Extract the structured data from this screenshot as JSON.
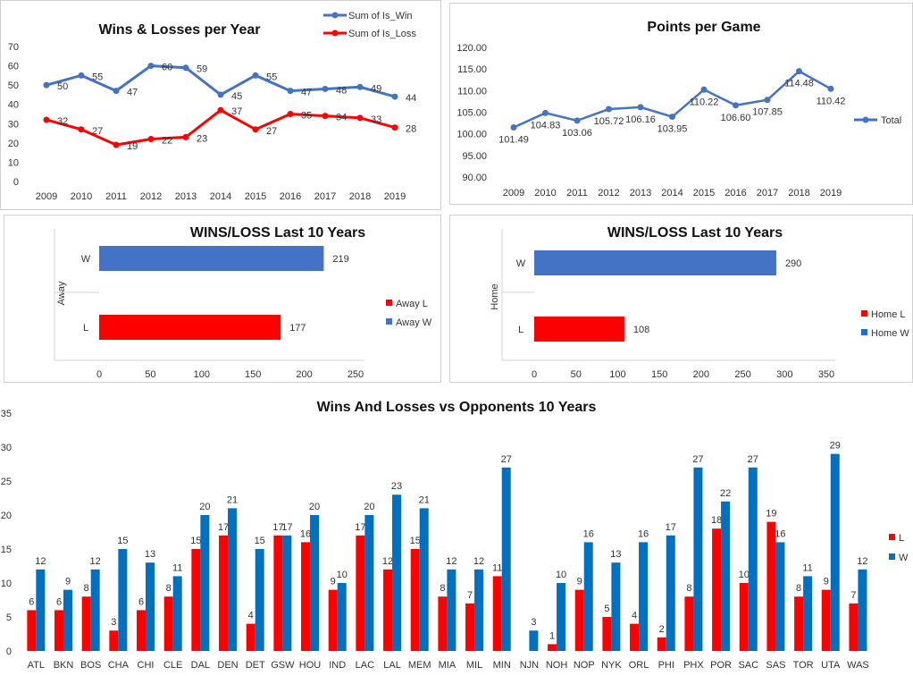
{
  "chart_data": [
    {
      "id": "winloss_year",
      "type": "line",
      "title": "Wins & Losses  per Year",
      "categories": [
        "2009",
        "2010",
        "2011",
        "2012",
        "2013",
        "2014",
        "2015",
        "2016",
        "2017",
        "2018",
        "2019"
      ],
      "series": [
        {
          "name": "Sum of Is_Win",
          "color": "#4472c4",
          "values": [
            50,
            55,
            47,
            60,
            59,
            45,
            55,
            47,
            48,
            49,
            44
          ]
        },
        {
          "name": "Sum of Is_Loss",
          "color": "#ff0000",
          "values": [
            32,
            27,
            19,
            22,
            23,
            37,
            27,
            35,
            34,
            33,
            28
          ]
        }
      ],
      "ylim": [
        0,
        70
      ],
      "yticks": [
        0,
        10,
        20,
        30,
        40,
        50,
        60,
        70
      ],
      "ytick_labels": [
        "0",
        "10",
        "20",
        "30",
        "40",
        "50",
        "60",
        "70"
      ],
      "legend": "top-right",
      "grid": false
    },
    {
      "id": "points_game",
      "type": "line",
      "title": "Points per Game",
      "categories": [
        "2009",
        "2010",
        "2011",
        "2012",
        "2013",
        "2014",
        "2015",
        "2016",
        "2017",
        "2018",
        "2019"
      ],
      "series": [
        {
          "name": "Total",
          "color": "#4472c4",
          "values": [
            101.49,
            104.83,
            103.06,
            105.72,
            106.16,
            103.95,
            110.22,
            106.6,
            107.85,
            114.48,
            110.42
          ],
          "labels": [
            "101.49",
            "104.83",
            "103.06",
            "105.72",
            "106.16",
            "103.95",
            "110.22",
            "106.60",
            "107.85",
            "114.48",
            "110.42"
          ]
        }
      ],
      "ylim": [
        90,
        120
      ],
      "yticks": [
        90,
        95,
        100,
        105,
        110,
        115,
        120
      ],
      "ytick_labels": [
        "90.00",
        "95.00",
        "100.00",
        "105.00",
        "110.00",
        "115.00",
        "120.00"
      ],
      "legend": "right",
      "grid": false
    },
    {
      "id": "away",
      "type": "bar",
      "orientation": "horizontal",
      "title": "WINS/LOSS  Last 10 Years",
      "ylabel": "Away",
      "categories": [
        "W",
        "L"
      ],
      "values": [
        219,
        177
      ],
      "colors": [
        "#4472c4",
        "#ff0000"
      ],
      "legend_entries": [
        {
          "name": "Away L",
          "color": "#ff0000"
        },
        {
          "name": "Away W",
          "color": "#4472c4"
        }
      ],
      "xlim": [
        0,
        250
      ],
      "xticks": [
        0,
        50,
        100,
        150,
        200,
        250
      ],
      "xtick_labels": [
        "0",
        "50",
        "100",
        "150",
        "200",
        "250"
      ]
    },
    {
      "id": "home",
      "type": "bar",
      "orientation": "horizontal",
      "title": "WINS/LOSS Last 10 Years",
      "ylabel": "Home",
      "categories": [
        "W",
        "L"
      ],
      "values": [
        290,
        108
      ],
      "colors": [
        "#4472c4",
        "#ff0000"
      ],
      "legend_entries": [
        {
          "name": "Home L",
          "color": "#ff0000"
        },
        {
          "name": "Home W",
          "color": "#1f6fc5"
        }
      ],
      "xlim": [
        0,
        350
      ],
      "xticks": [
        0,
        50,
        100,
        150,
        200,
        250,
        300,
        350
      ],
      "xtick_labels": [
        "0",
        "50",
        "100",
        "150",
        "200",
        "250",
        "300",
        "350"
      ]
    },
    {
      "id": "opponents",
      "type": "bar",
      "title": "Wins And Losses vs Opponents 10 Years",
      "categories": [
        "ATL",
        "BKN",
        "BOS",
        "CHA",
        "CHI",
        "CLE",
        "DAL",
        "DEN",
        "DET",
        "GSW",
        "HOU",
        "IND",
        "LAC",
        "LAL",
        "MEM",
        "MIA",
        "MIL",
        "MIN",
        "NJN",
        "NOH",
        "NOP",
        "NYK",
        "ORL",
        "PHI",
        "PHX",
        "POR",
        "SAC",
        "SAS",
        "TOR",
        "UTA",
        "WAS"
      ],
      "series": [
        {
          "name": "L",
          "color": "#ff0000",
          "values": [
            6,
            6,
            8,
            3,
            6,
            8,
            15,
            17,
            4,
            17,
            16,
            9,
            17,
            12,
            15,
            8,
            7,
            11,
            null,
            1,
            9,
            5,
            4,
            2,
            8,
            18,
            10,
            19,
            8,
            9,
            7
          ]
        },
        {
          "name": "W",
          "color": "#0070c0",
          "values": [
            12,
            9,
            12,
            15,
            13,
            11,
            20,
            21,
            15,
            17,
            20,
            10,
            20,
            23,
            21,
            12,
            12,
            27,
            3,
            10,
            16,
            13,
            16,
            17,
            27,
            22,
            27,
            16,
            11,
            29,
            12
          ]
        }
      ],
      "ylim": [
        0,
        35
      ],
      "yticks": [
        0,
        5,
        10,
        15,
        20,
        25,
        30,
        35
      ],
      "ytick_labels": [
        "0",
        "5",
        "10",
        "15",
        "20",
        "25",
        "30",
        "35"
      ],
      "legend": "right",
      "grid": false
    }
  ]
}
